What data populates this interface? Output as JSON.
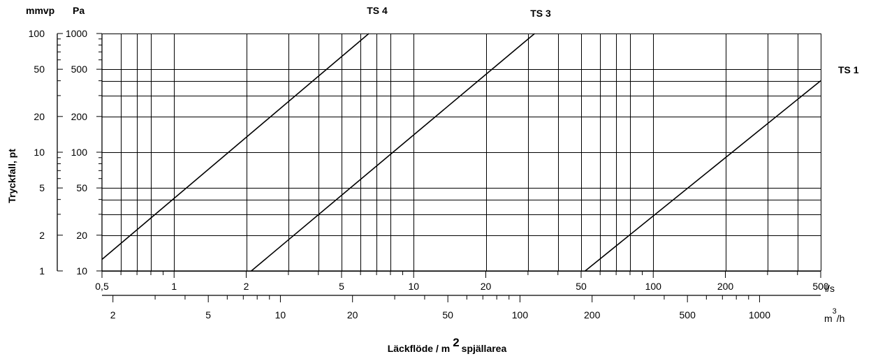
{
  "chart_data": {
    "type": "line",
    "title": "",
    "xlabel": {
      "prefix": "Läckflöde / m",
      "superscript": "2",
      "suffix": "spjällarea"
    },
    "ylabel": "Tryckfall, pt",
    "x_scale": "log",
    "y_scale": "log",
    "xlim": [
      0.5,
      500
    ],
    "ylim": [
      10,
      1000
    ],
    "x_unit": "l/s",
    "x2_unit": {
      "base": "m",
      "superscript": "3",
      "suffix": "/h"
    },
    "y_unit_left": "mmvp",
    "y_unit_right": "Pa",
    "x_ticks": [
      {
        "value": 0.5,
        "label": "0,5"
      },
      {
        "value": 1,
        "label": "1"
      },
      {
        "value": 2,
        "label": "2"
      },
      {
        "value": 5,
        "label": "5"
      },
      {
        "value": 10,
        "label": "10"
      },
      {
        "value": 20,
        "label": "20"
      },
      {
        "value": 50,
        "label": "50"
      },
      {
        "value": 100,
        "label": "100"
      },
      {
        "value": 200,
        "label": "200"
      },
      {
        "value": 500,
        "label": "500"
      }
    ],
    "x2_ticks": [
      {
        "value": 2,
        "label": "2"
      },
      {
        "value": 5,
        "label": "5"
      },
      {
        "value": 10,
        "label": "10"
      },
      {
        "value": 20,
        "label": "20"
      },
      {
        "value": 50,
        "label": "50"
      },
      {
        "value": 100,
        "label": "100"
      },
      {
        "value": 200,
        "label": "200"
      },
      {
        "value": 500,
        "label": "500"
      },
      {
        "value": 1000,
        "label": "1000"
      }
    ],
    "y_pa_ticks": [
      {
        "value": 10,
        "label": "10"
      },
      {
        "value": 20,
        "label": "20"
      },
      {
        "value": 50,
        "label": "50"
      },
      {
        "value": 100,
        "label": "100"
      },
      {
        "value": 200,
        "label": "200"
      },
      {
        "value": 500,
        "label": "500"
      },
      {
        "value": 1000,
        "label": "1000"
      }
    ],
    "y_mmvp_ticks": [
      {
        "value": 1,
        "label": "1"
      },
      {
        "value": 2,
        "label": "2"
      },
      {
        "value": 5,
        "label": "5"
      },
      {
        "value": 10,
        "label": "10"
      },
      {
        "value": 20,
        "label": "20"
      },
      {
        "value": 50,
        "label": "50"
      },
      {
        "value": 100,
        "label": "100"
      }
    ],
    "grid": true,
    "x_grid": [
      0.6,
      0.7,
      0.8,
      1,
      2,
      3,
      4,
      5,
      6,
      7,
      8,
      10,
      20,
      30,
      40,
      50,
      60,
      70,
      80,
      100,
      200,
      300,
      400,
      500
    ],
    "y_grid": [
      10,
      20,
      30,
      40,
      50,
      100,
      200,
      300,
      400,
      500,
      1000
    ],
    "series": [
      {
        "name": "TS 4",
        "x": [
          0.5,
          6.5
        ],
        "y": [
          12.5,
          1000
        ]
      },
      {
        "name": "TS 3",
        "x": [
          2.1,
          32
        ],
        "y": [
          10,
          1000
        ]
      },
      {
        "name": "TS 1",
        "x": [
          52,
          500
        ],
        "y": [
          10,
          400
        ]
      }
    ]
  }
}
